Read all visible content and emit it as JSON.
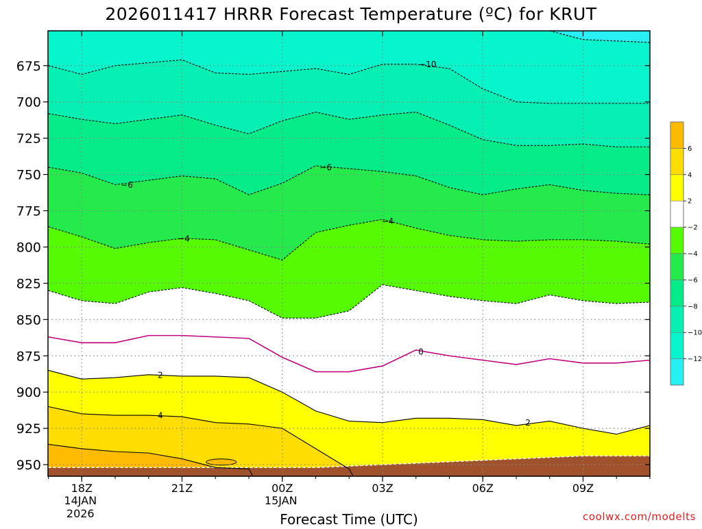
{
  "title": "2026011417 HRRR Forecast Temperature (ºC) for KRUT",
  "credit": "coolwx.com/modelts",
  "chart_data": {
    "type": "contour",
    "title": "2026011417 HRRR Forecast Temperature (ºC) for KRUT",
    "xlabel": "Forecast Time (UTC)",
    "ylabel": "",
    "ylim": [
      958,
      651
    ],
    "x_range_hours": [
      17,
      11
    ],
    "yticks": [
      675,
      700,
      725,
      750,
      775,
      800,
      825,
      850,
      875,
      900,
      925,
      950
    ],
    "xticks": [
      {
        "label": "18Z",
        "sub1": "14JAN",
        "sub2": "2026"
      },
      {
        "label": "21Z",
        "sub1": "",
        "sub2": ""
      },
      {
        "label": "00Z",
        "sub1": "15JAN",
        "sub2": ""
      },
      {
        "label": "03Z",
        "sub1": "",
        "sub2": ""
      },
      {
        "label": "06Z",
        "sub1": "",
        "sub2": ""
      },
      {
        "label": "09Z",
        "sub1": "",
        "sub2": ""
      }
    ],
    "grid": true,
    "times": [
      "17Z",
      "18Z",
      "19Z",
      "20Z",
      "21Z",
      "22Z",
      "23Z",
      "00Z",
      "01Z",
      "02Z",
      "03Z",
      "04Z",
      "05Z",
      "06Z",
      "07Z",
      "08Z",
      "09Z",
      "10Z",
      "11Z"
    ],
    "isotherms": [
      {
        "level": -12,
        "pressure": [
          null,
          null,
          null,
          null,
          null,
          null,
          null,
          null,
          null,
          null,
          null,
          null,
          null,
          null,
          null,
          651,
          657,
          658,
          659
        ]
      },
      {
        "level": -10,
        "pressure": [
          675,
          681,
          675,
          673,
          671,
          680,
          681,
          679,
          677,
          681,
          674,
          674,
          677,
          691,
          700,
          701,
          701,
          701,
          701
        ]
      },
      {
        "level": -8,
        "pressure": [
          708,
          712,
          715,
          712,
          709,
          716,
          722,
          713,
          707,
          712,
          709,
          707,
          716,
          726,
          730,
          730,
          729,
          731,
          731
        ]
      },
      {
        "level": -6,
        "pressure": [
          745,
          749,
          757,
          754,
          751,
          753,
          764,
          756,
          744,
          746,
          748,
          751,
          759,
          764,
          760,
          757,
          761,
          763,
          764
        ]
      },
      {
        "level": -4,
        "pressure": [
          786,
          793,
          801,
          797,
          794,
          795,
          802,
          809,
          790,
          785,
          781,
          787,
          792,
          795,
          796,
          795,
          795,
          796,
          798
        ]
      },
      {
        "level": -2,
        "pressure": [
          830,
          837,
          839,
          831,
          828,
          832,
          837,
          849,
          849,
          844,
          826,
          830,
          834,
          837,
          839,
          833,
          837,
          839,
          838
        ]
      },
      {
        "level": 0,
        "pressure": [
          862,
          866,
          866,
          861,
          861,
          862,
          863,
          876,
          886,
          886,
          882,
          871,
          875,
          878,
          881,
          877,
          880,
          880,
          878
        ]
      },
      {
        "level": 2,
        "pressure": [
          885,
          891,
          890,
          888,
          889,
          889,
          890,
          900,
          913,
          920,
          921,
          918,
          918,
          919,
          923,
          920,
          925,
          929,
          923
        ]
      },
      {
        "level": 4,
        "pressure": [
          910,
          915,
          916,
          916,
          917,
          921,
          922,
          925,
          939,
          953,
          null,
          null,
          null,
          null,
          null,
          null,
          null,
          null,
          null
        ]
      },
      {
        "level": 6,
        "pressure": [
          936,
          939,
          941,
          942,
          946,
          952,
          953,
          null,
          null,
          null,
          null,
          null,
          null,
          null,
          null,
          null,
          null,
          null,
          null
        ]
      }
    ],
    "surface_pressure": [
      952,
      952,
      952,
      952,
      952,
      952,
      952,
      952,
      952,
      951,
      950,
      949,
      948,
      947,
      946,
      945,
      944,
      944,
      944
    ],
    "contour_labels": [
      {
        "text": "−10",
        "time_hours": 4.35,
        "pressure": 674
      },
      {
        "text": "−6",
        "time_hours": 19.35,
        "pressure": 757
      },
      {
        "text": "−6",
        "time_hours": 1.3,
        "pressure": 745
      },
      {
        "text": "−4",
        "time_hours": 21.05,
        "pressure": 794
      },
      {
        "text": "−4",
        "time_hours": 3.15,
        "pressure": 782
      },
      {
        "text": "0",
        "time_hours": 4.15,
        "pressure": 872
      },
      {
        "text": "2",
        "time_hours": 20.35,
        "pressure": 888
      },
      {
        "text": "2",
        "time_hours": 7.35,
        "pressure": 921
      },
      {
        "text": "4",
        "time_hours": 20.35,
        "pressure": 916
      }
    ],
    "colorbar": {
      "bins": [
        {
          "from": -14,
          "to": -12,
          "color": "#26f0f4"
        },
        {
          "from": -12,
          "to": -10,
          "color": "#07f5cc"
        },
        {
          "from": -10,
          "to": -8,
          "color": "#07f0b3"
        },
        {
          "from": -8,
          "to": -6,
          "color": "#05eb88"
        },
        {
          "from": -6,
          "to": -4,
          "color": "#24ea4c"
        },
        {
          "from": -4,
          "to": -2,
          "color": "#55fa03"
        },
        {
          "from": -2,
          "to": 2,
          "color": "#ffffff"
        },
        {
          "from": 2,
          "to": 4,
          "color": "#ffff00"
        },
        {
          "from": 4,
          "to": 6,
          "color": "#ffdd00"
        },
        {
          "from": 6,
          "to": 8,
          "color": "#ffbb00"
        }
      ],
      "labels": [
        {
          "value": -12,
          "text": "−12"
        },
        {
          "value": -10,
          "text": "−10"
        },
        {
          "value": -8,
          "text": "−8"
        },
        {
          "value": -6,
          "text": "−6"
        },
        {
          "value": -4,
          "text": "−4"
        },
        {
          "value": -2,
          "text": "−2"
        },
        {
          "value": 2,
          "text": "2"
        },
        {
          "value": 4,
          "text": "4"
        },
        {
          "value": 6,
          "text": "6"
        }
      ]
    },
    "colors": {
      "ground": "#a0522d",
      "freezing_line": "#c0007a",
      "contour_dashed": "#000000",
      "contour_solid": "#000000",
      "grid": "#888888",
      "credit": "#e02020"
    }
  }
}
